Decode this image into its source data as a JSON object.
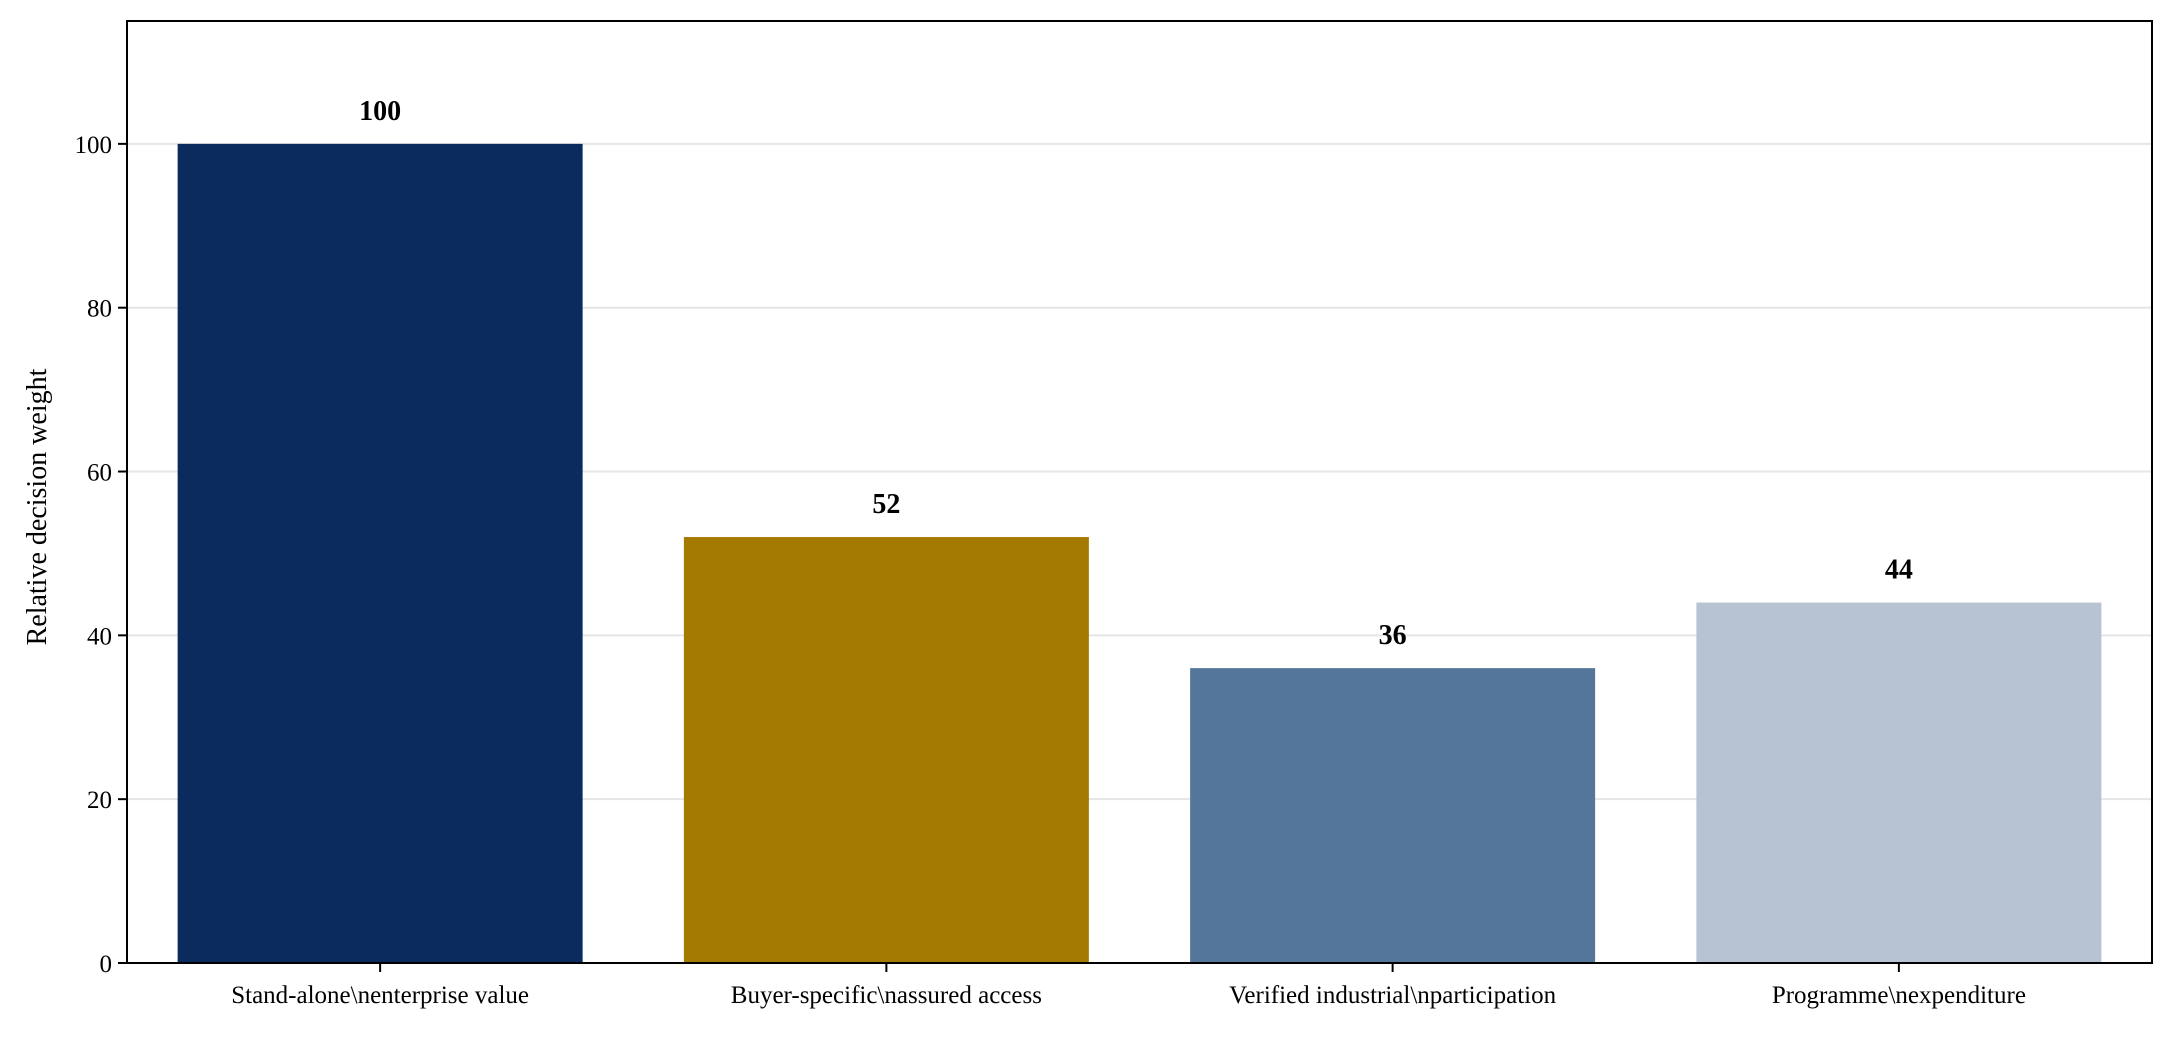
{
  "chart_data": {
    "type": "bar",
    "title": "",
    "xlabel": "",
    "ylabel": "Relative decision weight",
    "categories": [
      "Stand-alone\\nenterprise value",
      "Buyer-specific\\nassured access",
      "Verified industrial\\nparticipation",
      "Programme\\nexpenditure"
    ],
    "values": [
      100,
      52,
      36,
      44
    ],
    "value_labels": [
      "100",
      "52",
      "36",
      "44"
    ],
    "colors": [
      "#0b2a5e",
      "#a57a00",
      "#55769b",
      "#b7c3d2"
    ],
    "ylim": [
      0,
      115
    ],
    "yticks": [
      0,
      20,
      40,
      60,
      80,
      100
    ],
    "ytick_labels": [
      "0",
      "20",
      "40",
      "60",
      "80",
      "100"
    ],
    "grid": "y",
    "legend": "none"
  }
}
